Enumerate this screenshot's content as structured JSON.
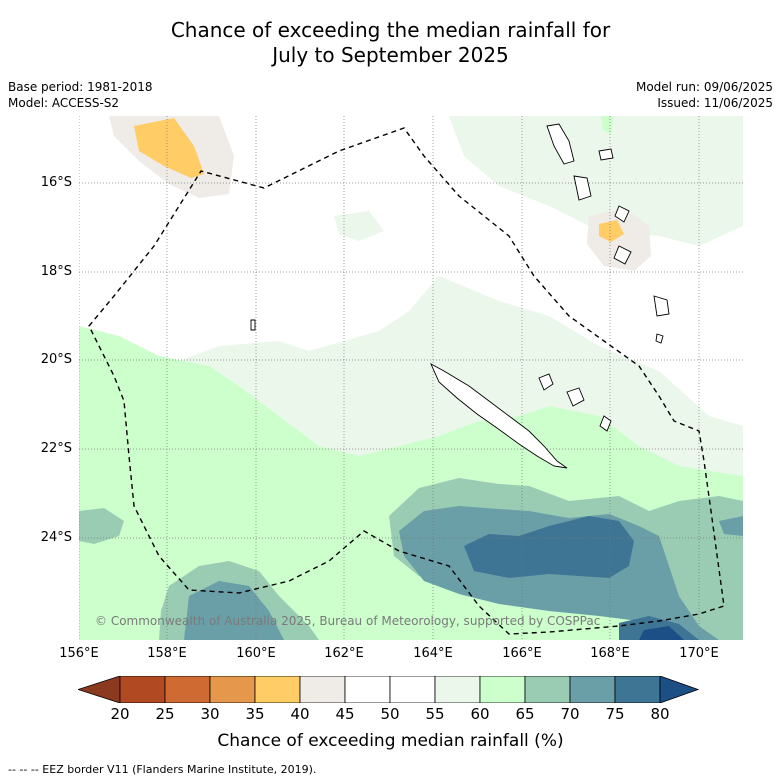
{
  "title_line1": "Chance of exceeding the median rainfall for",
  "title_line2": "July to September 2025",
  "meta_left": {
    "base_period": "Base period: 1981-2018",
    "model": "Model: ACCESS-S2"
  },
  "meta_right": {
    "model_run": "Model run: 09/06/2025",
    "issued": "Issued: 11/06/2025"
  },
  "map": {
    "lat_labels": [
      "16°S",
      "18°S",
      "20°S",
      "22°S",
      "24°S"
    ],
    "lon_labels": [
      "156°E",
      "158°E",
      "160°E",
      "162°E",
      "164°E",
      "166°E",
      "168°E",
      "170°E"
    ],
    "copyright": "© Commonwealth of Australia 2025, Bureau of Meteorology, supported by COSPPac"
  },
  "colorbar": {
    "labels": [
      "20",
      "25",
      "30",
      "35",
      "40",
      "45",
      "50",
      "55",
      "60",
      "65",
      "70",
      "75",
      "80"
    ],
    "colors": [
      "#8b3a1f",
      "#b14a22",
      "#cf6a32",
      "#e5974b",
      "#ffcc66",
      "#efebe7",
      "#ffffff",
      "#ffffff",
      "#ebf7eb",
      "#ccffcc",
      "#99ccb3",
      "#6b9fa8",
      "#3f7594",
      "#1c4f85"
    ],
    "title": "Chance of exceeding median rainfall (%)"
  },
  "footnote": "--  --  -- EEZ border V11 (Flanders Marine Institute, 2019)."
}
